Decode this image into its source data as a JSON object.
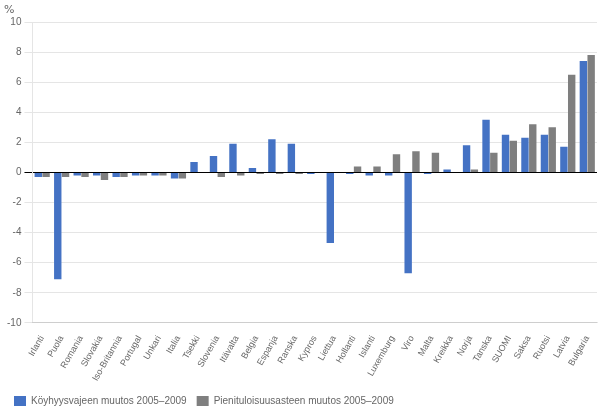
{
  "chart_data": {
    "type": "bar",
    "y_label": "%",
    "categories": [
      "Irlanti",
      "Puola",
      "Romania",
      "Slovakia",
      "Iso-Britannia",
      "Portugal",
      "Unkari",
      "Italia",
      "Tsekki",
      "Slovenia",
      "Itävalta",
      "Belgia",
      "Espanja",
      "Ranska",
      "Kypros",
      "Liettua",
      "Hollanti",
      "Islanti",
      "Luxemburg",
      "Viro",
      "Malta",
      "Kreikka",
      "Norja",
      "Tanska",
      "SUOMI",
      "Saksa",
      "Ruotsi",
      "Latvia",
      "Bulgaria"
    ],
    "series": [
      {
        "name": "Köyhyysvajeen muutos 2005–2009",
        "color": "#4472C4",
        "values": [
          -0.3,
          -7.1,
          -0.2,
          -0.2,
          -0.3,
          -0.2,
          -0.2,
          -0.4,
          0.7,
          1.1,
          1.9,
          0.3,
          2.2,
          1.9,
          -0.1,
          -4.7,
          -0.1,
          -0.2,
          -0.2,
          -6.7,
          -0.1,
          0.2,
          1.8,
          3.5,
          2.5,
          2.3,
          2.5,
          1.7,
          7.4
        ]
      },
      {
        "name": "Pienituloisuusasteen muutos 2005–2009",
        "color": "#7F7F7F",
        "values": [
          -0.3,
          -0.3,
          -0.3,
          -0.5,
          -0.3,
          -0.2,
          -0.2,
          -0.4,
          0.0,
          -0.3,
          -0.2,
          -0.1,
          -0.1,
          -0.1,
          0.0,
          0.0,
          0.4,
          0.4,
          1.2,
          1.4,
          1.3,
          0.0,
          0.2,
          1.3,
          2.1,
          3.2,
          3.0,
          6.5,
          7.8
        ]
      }
    ],
    "ylim": [
      -10,
      10
    ],
    "yticks": [
      -10,
      -8,
      -6,
      -4,
      -2,
      0,
      2,
      4,
      6,
      8,
      10
    ],
    "grid": true,
    "legend": "bottom"
  }
}
